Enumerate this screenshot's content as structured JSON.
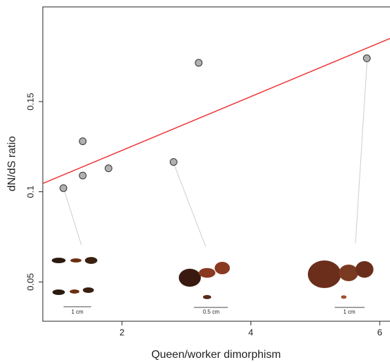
{
  "chart_data": {
    "type": "scatter",
    "xlabel": "Queen/worker dimorphism",
    "ylabel": "dN/dS ratio",
    "x": [
      1.09,
      1.39,
      1.39,
      1.79,
      2.8,
      3.19,
      5.8
    ],
    "values": [
      0.102,
      0.128,
      0.109,
      0.113,
      0.1165,
      0.1715,
      0.174
    ],
    "color": "#b0b0b0",
    "fit": {
      "x": [
        0.77,
        6.16
      ],
      "y": [
        0.1046,
        0.185
      ],
      "color": "#ee3333"
    },
    "xlim": [
      0.77,
      6.16
    ],
    "ylim": [
      0.0282,
      0.2025
    ],
    "xticks": [
      2,
      4,
      6
    ],
    "yticks": [
      0.05,
      0.1,
      0.15
    ],
    "scale_labels": [
      "1 cm",
      "0.5 cm",
      "1 cm"
    ]
  }
}
